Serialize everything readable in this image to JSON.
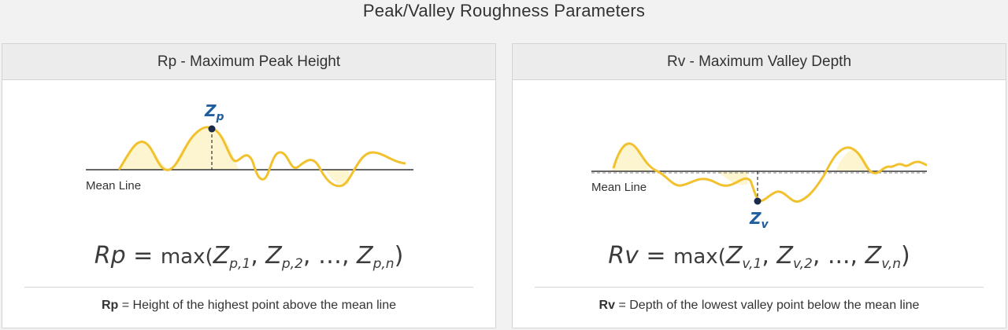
{
  "title": "Peak/Valley Roughness Parameters",
  "colors": {
    "profile": "#f2c12e",
    "fill": "#fdf5cf",
    "point": "#1a2a4a",
    "label": "#1f5f9e"
  },
  "panels": [
    {
      "header": "Rp - Maximum Peak Height",
      "mean_line_label": "Mean Line",
      "point_label": "Z",
      "point_label_sub": "p",
      "formula": {
        "lhs": "Rp",
        "eq": " = ",
        "fn": "max(",
        "var": "Z",
        "subs": [
          "p,1",
          "p,2",
          "p,n"
        ],
        "sep": ", ",
        "ellipsis": "…",
        "close": ")"
      },
      "caption": {
        "term": "Rp",
        "text": " = Height of the highest point above the mean line"
      }
    },
    {
      "header": "Rv - Maximum Valley Depth",
      "mean_line_label": "Mean Line",
      "point_label": "Z",
      "point_label_sub": "v",
      "formula": {
        "lhs": "Rv",
        "eq": " = ",
        "fn": "max(",
        "var": "Z",
        "subs": [
          "v,1",
          "v,2",
          "v,n"
        ],
        "sep": ", ",
        "ellipsis": "...",
        "close": ")"
      },
      "caption": {
        "term": "Rv",
        "text": " = Depth of the lowest valley point below the mean line"
      }
    }
  ]
}
